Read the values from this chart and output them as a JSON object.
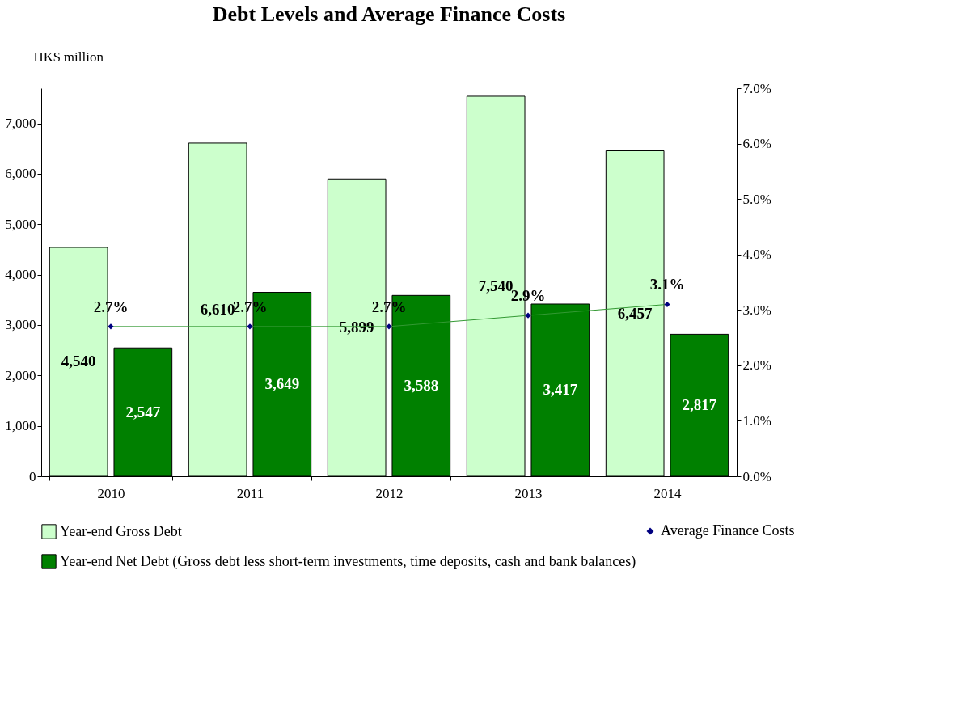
{
  "chart_data": {
    "type": "bar",
    "title": "Debt Levels and Average Finance Costs",
    "ylabel": "HK$ million",
    "categories": [
      "2010",
      "2011",
      "2012",
      "2013",
      "2014"
    ],
    "series": [
      {
        "name": "Year-end Gross Debt",
        "color": "#ccffcc",
        "values": [
          4540,
          6610,
          5899,
          7540,
          6457
        ],
        "value_labels": [
          "4,540",
          "6,610",
          "5,899",
          "7,540",
          "6,457"
        ]
      },
      {
        "name": "Year-end Net Debt (Gross debt less short-term investments, time deposits, cash and bank balances)",
        "color": "#008000",
        "values": [
          2547,
          3649,
          3588,
          3417,
          2817
        ],
        "value_labels": [
          "2,547",
          "3,649",
          "3,588",
          "3,417",
          "2,817"
        ]
      },
      {
        "name": "Average Finance Costs",
        "type": "line",
        "axis": "y2",
        "color": "#339933",
        "values": [
          2.7,
          2.7,
          2.7,
          2.9,
          3.1
        ],
        "value_labels": [
          "2.7%",
          "2.7%",
          "2.7%",
          "2.9%",
          "3.1%"
        ]
      }
    ],
    "ylim": [
      0,
      7700
    ],
    "yticks": [
      {
        "value": 0,
        "label": "0"
      },
      {
        "value": 1000,
        "label": "1,000"
      },
      {
        "value": 2000,
        "label": "2,000"
      },
      {
        "value": 3000,
        "label": "3,000"
      },
      {
        "value": 4000,
        "label": "4,000"
      },
      {
        "value": 5000,
        "label": "5,000"
      },
      {
        "value": 6000,
        "label": "6,000"
      },
      {
        "value": 7000,
        "label": "7,000"
      }
    ],
    "y2lim": [
      0,
      7
    ],
    "y2ticks": [
      {
        "value": 0,
        "label": "0.0%"
      },
      {
        "value": 1,
        "label": "1.0%"
      },
      {
        "value": 2,
        "label": "2.0%"
      },
      {
        "value": 3,
        "label": "3.0%"
      },
      {
        "value": 4,
        "label": "4.0%"
      },
      {
        "value": 5,
        "label": "5.0%"
      },
      {
        "value": 6,
        "label": "6.0%"
      },
      {
        "value": 7,
        "label": "7.0%"
      }
    ],
    "legend": "bottom",
    "marker": "diamond",
    "line_style": "solid",
    "grid": false
  }
}
